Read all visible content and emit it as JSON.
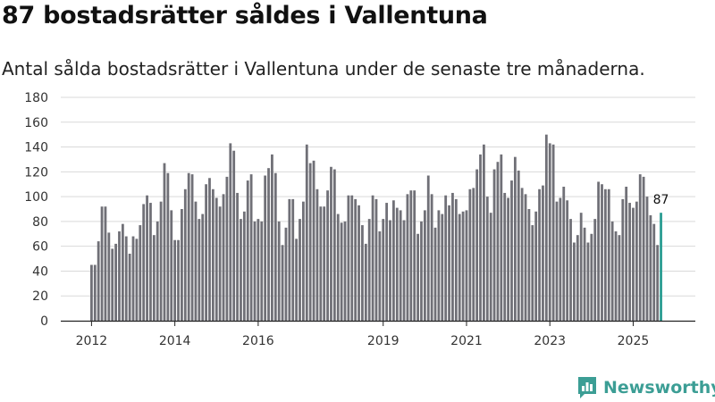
{
  "headline": "87 bostadsrätter såldes i Vallentuna",
  "subtitle": "Antal sålda bostadsrätter i Vallentuna under de senaste tre månaderna.",
  "brand": {
    "name": "Newsworthy",
    "icon": "newsworthy-logo-icon",
    "color": "#3c9e95"
  },
  "colors": {
    "bar": "#707077",
    "highlight": "#2a9d92",
    "grid": "#d9d9d9",
    "axis": "#222222"
  },
  "chart_data": {
    "type": "bar",
    "title": "87 bostadsrätter såldes i Vallentuna",
    "subtitle": "Antal sålda bostadsrätter i Vallentuna under de senaste tre månaderna.",
    "xlabel": "",
    "ylabel": "",
    "ylim": [
      0,
      180
    ],
    "yticks": [
      0,
      20,
      40,
      60,
      80,
      100,
      120,
      140,
      160,
      180
    ],
    "grid": true,
    "x_start": "2012-01",
    "x_ticks": [
      {
        "label": "2012",
        "index": 0
      },
      {
        "label": "2014",
        "index": 24
      },
      {
        "label": "2016",
        "index": 48
      },
      {
        "label": "2019",
        "index": 84
      },
      {
        "label": "2021",
        "index": 108
      },
      {
        "label": "2023",
        "index": 132
      },
      {
        "label": "2025",
        "index": 156
      }
    ],
    "values": [
      45,
      45,
      64,
      92,
      92,
      71,
      58,
      62,
      72,
      78,
      68,
      54,
      68,
      66,
      77,
      94,
      101,
      95,
      69,
      80,
      96,
      127,
      119,
      89,
      65,
      65,
      90,
      106,
      119,
      118,
      96,
      82,
      86,
      110,
      115,
      106,
      99,
      92,
      102,
      116,
      143,
      137,
      103,
      82,
      88,
      113,
      118,
      80,
      82,
      80,
      117,
      123,
      134,
      119,
      80,
      61,
      75,
      98,
      98,
      66,
      82,
      96,
      142,
      127,
      129,
      106,
      92,
      92,
      105,
      124,
      122,
      86,
      79,
      80,
      101,
      101,
      98,
      93,
      77,
      62,
      82,
      101,
      98,
      72,
      82,
      95,
      81,
      97,
      91,
      89,
      81,
      102,
      105,
      105,
      70,
      80,
      89,
      117,
      102,
      75,
      89,
      86,
      101,
      93,
      103,
      98,
      86,
      88,
      89,
      106,
      107,
      122,
      134,
      142,
      100,
      87,
      122,
      128,
      134,
      103,
      99,
      113,
      132,
      121,
      107,
      102,
      90,
      77,
      88,
      106,
      109,
      150,
      143,
      142,
      96,
      99,
      108,
      97,
      82,
      63,
      69,
      87,
      75,
      63,
      70,
      82,
      112,
      110,
      106,
      106,
      80,
      72,
      69,
      98,
      108,
      95,
      91,
      96,
      118,
      116,
      100,
      85,
      78,
      61,
      87
    ],
    "highlight": {
      "index": 164,
      "value": 87,
      "label": "87"
    }
  }
}
